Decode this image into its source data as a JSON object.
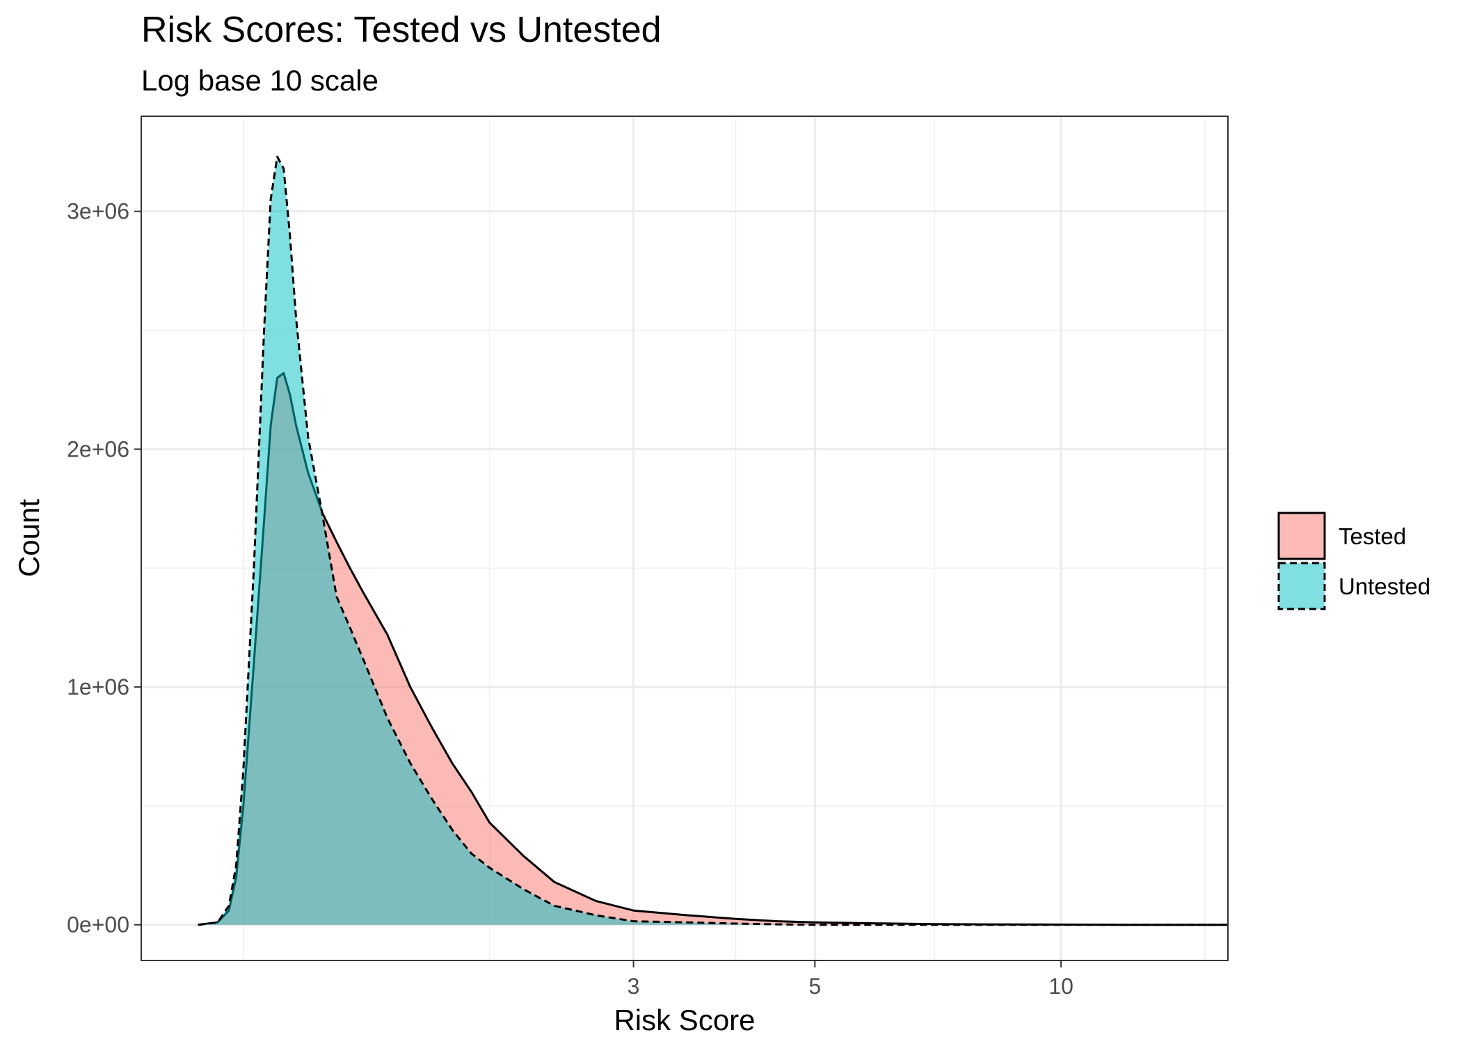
{
  "chart_data": {
    "type": "area",
    "title": "Risk Scores: Tested vs Untested",
    "subtitle": "Log base 10 scale",
    "xlabel": "Risk Score",
    "ylabel": "Count",
    "x_scale": "log10",
    "xlim": [
      0.75,
      16
    ],
    "ylim": [
      -150000,
      3400000
    ],
    "x_ticks": [
      3,
      5,
      10
    ],
    "x_tick_labels": [
      "3",
      "5",
      "10"
    ],
    "x_minor_gridlines": [
      1,
      2,
      4,
      7,
      15
    ],
    "y_ticks": [
      0,
      1000000,
      2000000,
      3000000
    ],
    "y_tick_labels": [
      "0e+00",
      "1e+06",
      "2e+06",
      "3e+06"
    ],
    "y_minor_gridlines": [
      500000,
      1500000,
      2500000
    ],
    "grid": true,
    "legend_position": "right",
    "series": [
      {
        "name": "Tested",
        "fill": "#F8766D",
        "line_style": "solid",
        "x": [
          0.88,
          0.93,
          0.96,
          0.98,
          1.0,
          1.03,
          1.06,
          1.08,
          1.1,
          1.12,
          1.14,
          1.16,
          1.2,
          1.25,
          1.3,
          1.35,
          1.4,
          1.5,
          1.6,
          1.7,
          1.8,
          1.9,
          2.0,
          2.2,
          2.4,
          2.7,
          3.0,
          3.5,
          4.0,
          4.5,
          5.0,
          6.0,
          7.0,
          8.0,
          10.0,
          12.0,
          14.0,
          16.0
        ],
        "y": [
          0,
          10000,
          60000,
          200000,
          500000,
          1100000,
          1700000,
          2100000,
          2300000,
          2320000,
          2230000,
          2100000,
          1900000,
          1730000,
          1610000,
          1500000,
          1400000,
          1220000,
          1000000,
          830000,
          680000,
          560000,
          430000,
          290000,
          180000,
          100000,
          60000,
          40000,
          25000,
          15000,
          10000,
          6000,
          3000,
          2000,
          1000,
          0,
          0,
          0
        ]
      },
      {
        "name": "Untested",
        "fill": "#00BFC4",
        "line_style": "dashed",
        "x": [
          0.88,
          0.93,
          0.96,
          0.98,
          1.0,
          1.03,
          1.06,
          1.08,
          1.1,
          1.12,
          1.14,
          1.16,
          1.2,
          1.25,
          1.3,
          1.35,
          1.4,
          1.5,
          1.6,
          1.7,
          1.8,
          1.9,
          2.0,
          2.2,
          2.4,
          2.7,
          3.0,
          3.5,
          4.0,
          4.5,
          5.0,
          6.0,
          7.0,
          8.0,
          10.0,
          12.0,
          14.0,
          16.0
        ],
        "y": [
          0,
          10000,
          80000,
          250000,
          650000,
          1500000,
          2500000,
          3050000,
          3230000,
          3180000,
          2900000,
          2550000,
          2050000,
          1720000,
          1380000,
          1250000,
          1120000,
          870000,
          680000,
          530000,
          400000,
          300000,
          240000,
          150000,
          80000,
          40000,
          15000,
          10000,
          5000,
          2000,
          0,
          0,
          0,
          0,
          0,
          0,
          0,
          0
        ]
      }
    ]
  }
}
